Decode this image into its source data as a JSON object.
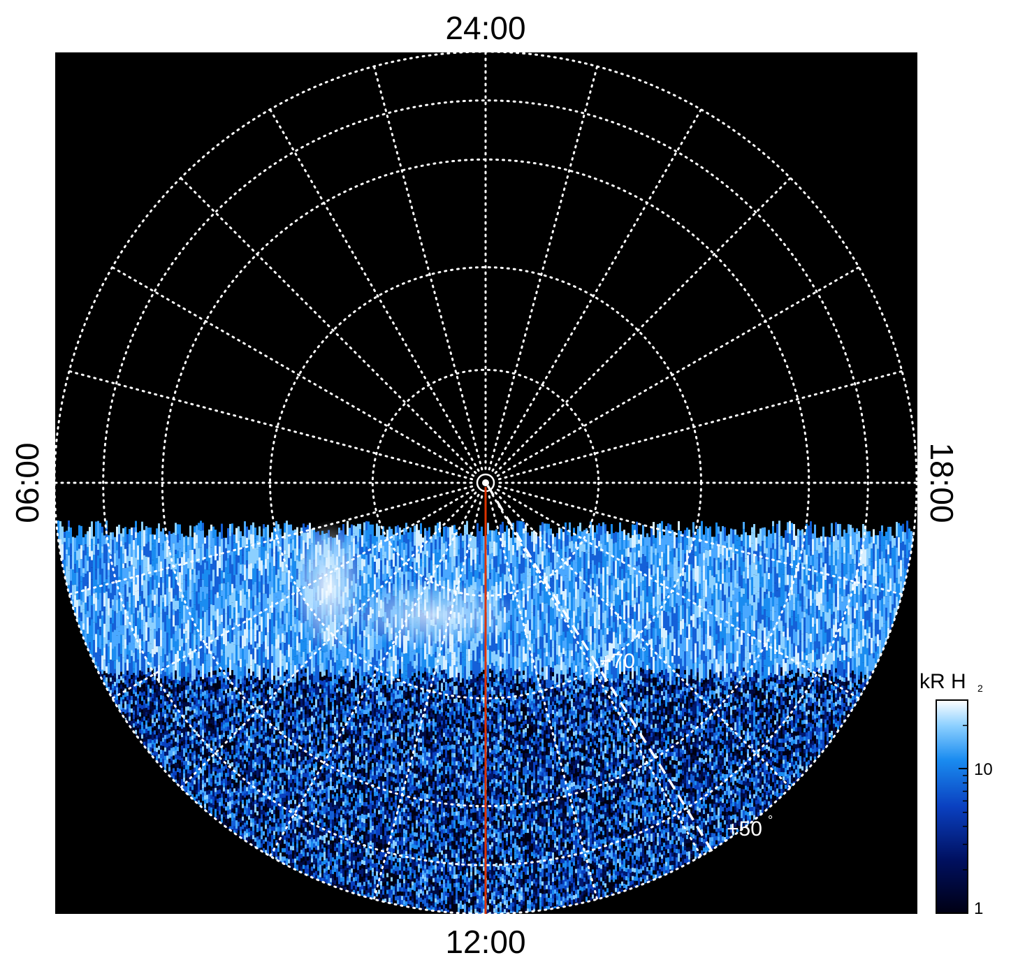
{
  "projection": {
    "type": "polar auroral map",
    "hemisphere": "north",
    "background_color": "#000000",
    "grid_color": "#ffffff",
    "grid_style": "dotted",
    "meridian_step_hours": 1,
    "latitude_circles_deg": [
      90,
      85,
      80,
      75,
      70,
      65,
      60
    ],
    "observed_region": "dayside half (06:00 through 12:00 to 18:00)"
  },
  "local_time_labels": {
    "top": "24:00",
    "bottom": "12:00",
    "left": "06:00",
    "right": "18:00"
  },
  "annotations": {
    "lat_high": "+70",
    "lat_low": "+50",
    "degree_symbol": "°",
    "cut_line_color": "#dd3300",
    "cut_line_local_time": "12:00"
  },
  "colorbar": {
    "title": "kR H",
    "title_subscript": "2",
    "scale": "log",
    "range": [
      1,
      30
    ],
    "ticks": [
      {
        "value": 10,
        "label": "10"
      },
      {
        "value": 1,
        "label": "1"
      }
    ],
    "colors": [
      "#000014",
      "#001060",
      "#0a40c0",
      "#1a8cf0",
      "#8cd0ff",
      "#ffffff"
    ]
  }
}
